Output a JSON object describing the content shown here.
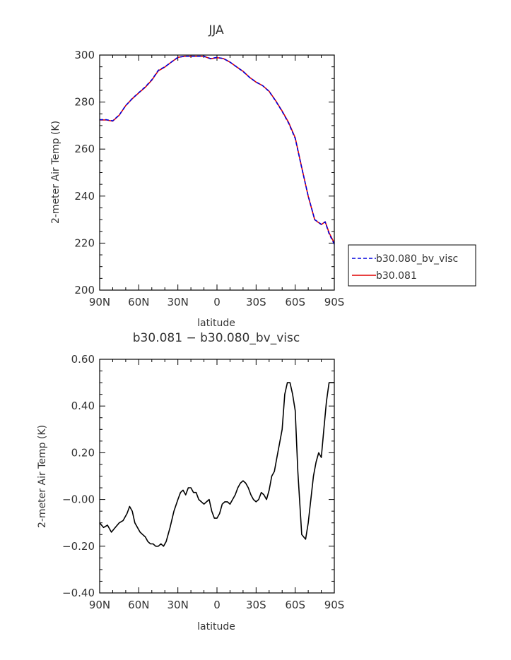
{
  "chart_data": [
    {
      "type": "line",
      "title": "JJA",
      "xlabel": "latitude",
      "ylabel": "2-meter Air Temp (K)",
      "xlim": [
        90,
        -90
      ],
      "ylim": [
        200,
        300
      ],
      "xtick_values": [
        90,
        60,
        30,
        0,
        -30,
        -60,
        -90
      ],
      "xtick_labels": [
        "90N",
        "60N",
        "30N",
        "0",
        "30S",
        "60S",
        "90S"
      ],
      "yticks": [
        200,
        220,
        240,
        260,
        280,
        300
      ],
      "grid": false,
      "legend_placement": "right",
      "series": [
        {
          "name": "b30.080_bv_visc",
          "color": "#0000dd",
          "dash": "dashed",
          "x": [
            90,
            85,
            80,
            75,
            70,
            65,
            60,
            55,
            50,
            45,
            40,
            35,
            30,
            25,
            20,
            15,
            10,
            5,
            0,
            -5,
            -10,
            -15,
            -20,
            -25,
            -30,
            -35,
            -40,
            -45,
            -50,
            -55,
            -60,
            -65,
            -70,
            -75,
            -80,
            -83,
            -86,
            -90
          ],
          "y": [
            272.5,
            272.5,
            272.0,
            274.5,
            278.5,
            281.5,
            284.0,
            286.5,
            289.5,
            293.5,
            295.0,
            297.0,
            299.0,
            299.5,
            299.5,
            299.5,
            299.5,
            298.5,
            299.0,
            298.5,
            297.0,
            295.0,
            293.0,
            290.5,
            288.5,
            287.0,
            284.5,
            280.5,
            276.0,
            271.0,
            264.5,
            252.0,
            240.0,
            230.0,
            228.0,
            229.0,
            224.0,
            219.5
          ]
        },
        {
          "name": "b30.081",
          "color": "#e00000",
          "dash": "solid",
          "x": [
            90,
            85,
            80,
            75,
            70,
            65,
            60,
            55,
            50,
            45,
            40,
            35,
            30,
            25,
            20,
            15,
            10,
            5,
            0,
            -5,
            -10,
            -15,
            -20,
            -25,
            -30,
            -35,
            -40,
            -45,
            -50,
            -55,
            -60,
            -65,
            -70,
            -75,
            -80,
            -83,
            -86,
            -90
          ],
          "y": [
            272.4,
            272.4,
            271.9,
            274.4,
            278.5,
            281.4,
            283.9,
            286.3,
            289.3,
            293.3,
            294.9,
            297.0,
            299.0,
            299.5,
            299.5,
            299.5,
            299.5,
            298.4,
            298.9,
            298.5,
            297.0,
            295.0,
            293.1,
            290.5,
            288.5,
            287.0,
            284.6,
            280.6,
            276.2,
            271.3,
            264.8,
            252.2,
            239.9,
            229.9,
            227.9,
            229.1,
            224.4,
            220.0
          ]
        }
      ]
    },
    {
      "type": "line",
      "title": "b30.081 − b30.080_bv_visc",
      "xlabel": "latitude",
      "ylabel": "2-meter Air Temp (K)",
      "xlim": [
        90,
        -90
      ],
      "ylim": [
        -0.4,
        0.6
      ],
      "xtick_values": [
        90,
        60,
        30,
        0,
        -30,
        -60,
        -90
      ],
      "xtick_labels": [
        "90N",
        "60N",
        "30N",
        "0",
        "30S",
        "60S",
        "90S"
      ],
      "yticks": [
        -0.4,
        -0.2,
        0.0,
        0.2,
        0.4,
        0.6
      ],
      "ytick_labels": [
        "−0.40",
        "−0.20",
        "−0.00",
        "0.20",
        "0.40",
        "0.60"
      ],
      "grid": false,
      "series": [
        {
          "color": "#000000",
          "dash": "solid",
          "x": [
            90,
            87,
            84,
            81,
            78,
            75,
            72,
            69,
            67,
            65,
            63,
            61,
            59,
            57,
            55,
            53,
            51,
            49,
            47,
            45,
            43,
            41,
            39,
            36,
            33,
            30,
            28,
            26,
            24,
            22,
            20,
            18,
            16,
            14,
            12,
            10,
            8,
            6,
            4,
            2,
            0,
            -2,
            -4,
            -6,
            -8,
            -10,
            -12,
            -14,
            -16,
            -18,
            -20,
            -22,
            -24,
            -26,
            -28,
            -30,
            -32,
            -34,
            -36,
            -38,
            -40,
            -42,
            -44,
            -46,
            -48,
            -50,
            -52,
            -54,
            -56,
            -58,
            -60,
            -62,
            -65,
            -68,
            -70,
            -72,
            -74,
            -76,
            -78,
            -80,
            -82,
            -84,
            -86,
            -88,
            -90
          ],
          "y": [
            -0.1,
            -0.12,
            -0.11,
            -0.14,
            -0.12,
            -0.1,
            -0.09,
            -0.06,
            -0.03,
            -0.05,
            -0.1,
            -0.12,
            -0.14,
            -0.15,
            -0.16,
            -0.18,
            -0.19,
            -0.19,
            -0.2,
            -0.2,
            -0.19,
            -0.2,
            -0.18,
            -0.12,
            -0.05,
            0.0,
            0.03,
            0.04,
            0.02,
            0.05,
            0.05,
            0.03,
            0.03,
            0.0,
            -0.01,
            -0.02,
            -0.01,
            0.0,
            -0.05,
            -0.08,
            -0.08,
            -0.06,
            -0.02,
            -0.01,
            -0.01,
            -0.02,
            0.0,
            0.02,
            0.05,
            0.07,
            0.08,
            0.07,
            0.05,
            0.02,
            0.0,
            -0.01,
            0.0,
            0.03,
            0.02,
            0.0,
            0.04,
            0.1,
            0.12,
            0.18,
            0.24,
            0.3,
            0.45,
            0.5,
            0.5,
            0.45,
            0.38,
            0.12,
            -0.15,
            -0.17,
            -0.1,
            0.0,
            0.1,
            0.16,
            0.2,
            0.18,
            0.3,
            0.42,
            0.5,
            0.5,
            0.5
          ]
        }
      ]
    }
  ],
  "legend": [
    {
      "label": "b30.080_bv_visc",
      "color": "#0000dd",
      "dash": "dashed"
    },
    {
      "label": "b30.081",
      "color": "#e00000",
      "dash": "solid"
    }
  ]
}
